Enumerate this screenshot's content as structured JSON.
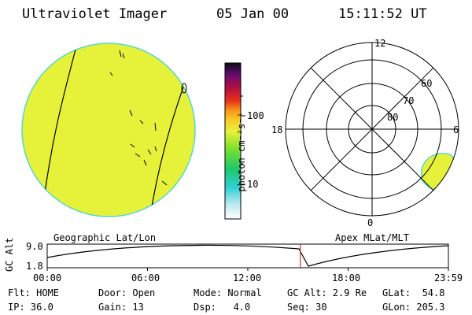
{
  "header": {
    "title": "Ultraviolet Imager",
    "date": "05 Jan 00",
    "time": "15:11:52 UT"
  },
  "colorbar": {
    "unit_label": "photon cm⁻²s⁻¹",
    "tick_100": "100",
    "tick_10": "10"
  },
  "polar": {
    "label_top": "12",
    "label_left": "18",
    "label_right": "6",
    "label_bottom": "0",
    "ring_60": "60",
    "ring_70": "70",
    "ring_80": "80"
  },
  "timeline": {
    "label_left": "Geographic Lat/Lon",
    "label_right": "Apex MLat/MLT",
    "axis_label": "GC Alt",
    "y_top": "9.0",
    "y_bottom": "1.8",
    "x_ticks": [
      "00:00",
      "06:00",
      "12:00",
      "18:00",
      "23:59"
    ],
    "current_fraction": 0.631,
    "colors": {
      "marker": "#c0392b"
    }
  },
  "info": {
    "flt": "Flt: HOME",
    "ip": "IP: 36.0",
    "door": "Door: Open",
    "gain": "Gain: 13",
    "mode": "Mode: Normal",
    "dsp": "Dsp:   4.0",
    "gcalt": "GC Alt: 2.9 Re",
    "seq": "Seq: 30",
    "glat": "GLat:  54.8",
    "glon": "GLon: 205.3"
  },
  "colors": {
    "disc_fill": "#e6f23a",
    "disc_edge": "#55d6d0"
  }
}
